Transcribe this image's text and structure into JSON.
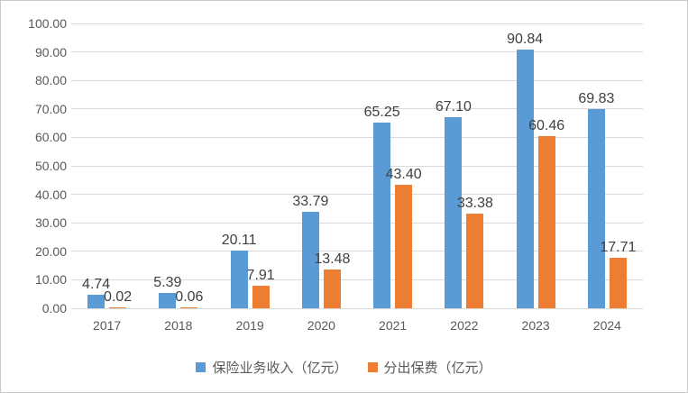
{
  "chart_data": {
    "type": "bar",
    "categories": [
      "2017",
      "2018",
      "2019",
      "2020",
      "2021",
      "2022",
      "2023",
      "2024"
    ],
    "series": [
      {
        "name": "保险业务收入（亿元）",
        "color": "#5B9BD5",
        "values": [
          4.74,
          5.39,
          20.11,
          33.79,
          65.25,
          67.1,
          90.84,
          69.83
        ]
      },
      {
        "name": "分出保费（亿元）",
        "color": "#ED7D31",
        "values": [
          0.02,
          0.06,
          7.91,
          13.48,
          43.4,
          33.38,
          60.46,
          17.71
        ]
      }
    ],
    "title": "",
    "xlabel": "",
    "ylabel": "",
    "ylim": [
      0,
      100
    ],
    "ytick_step": 10,
    "ytick_format_decimals": 2,
    "grid": true,
    "legend_position": "bottom"
  }
}
